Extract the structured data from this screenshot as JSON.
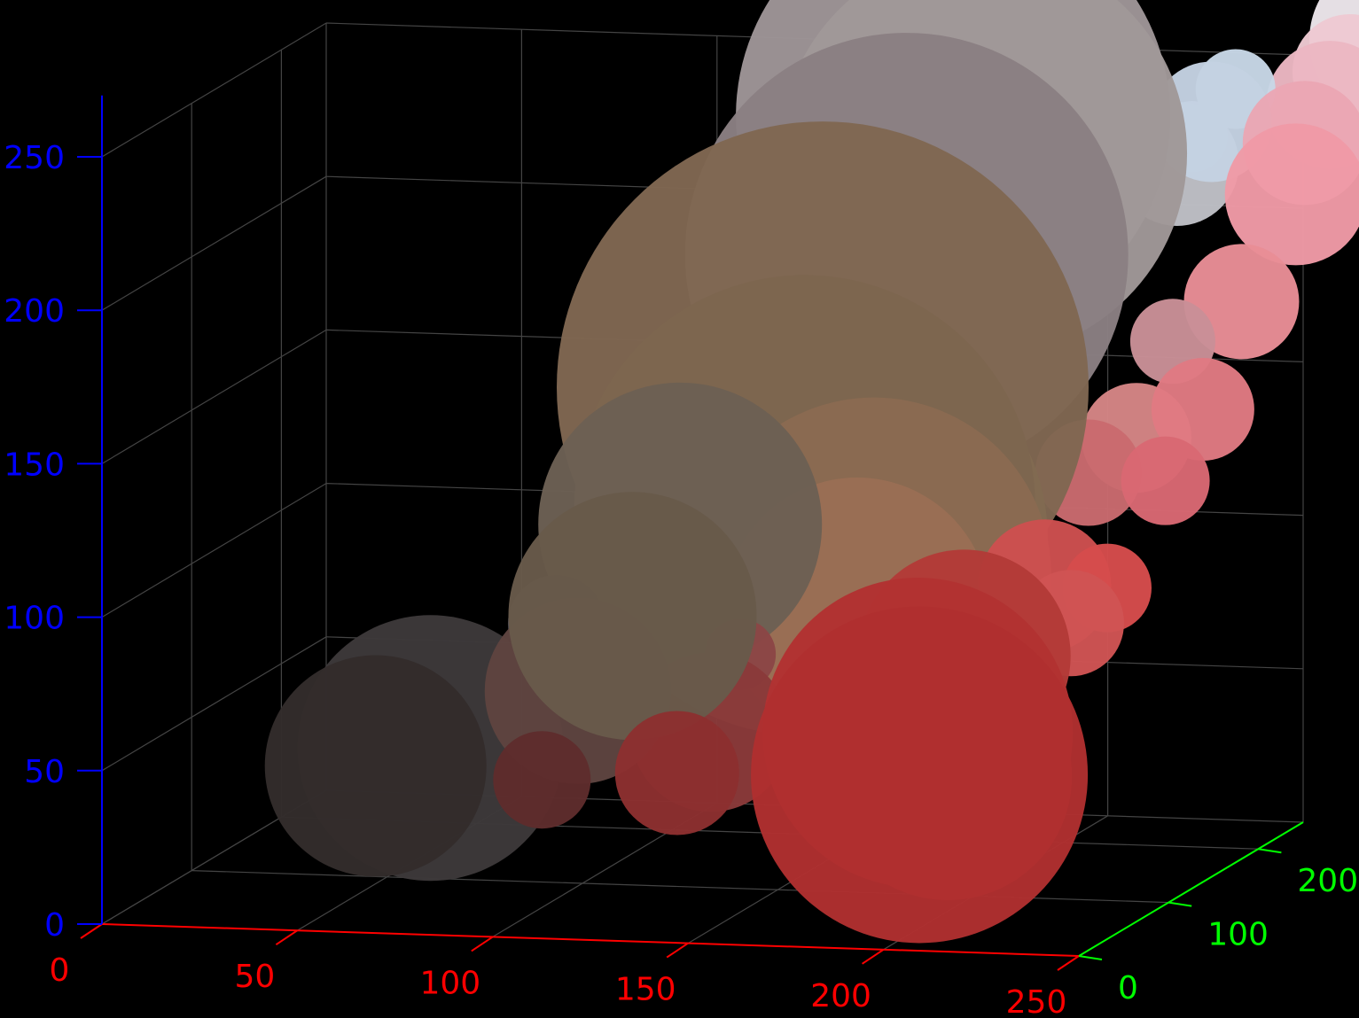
{
  "chart_data": {
    "type": "scatter3d",
    "title": "",
    "background": "#000000",
    "grid": true,
    "grid_color": "#444444",
    "axes": {
      "x": {
        "label": "",
        "range": [
          0,
          250
        ],
        "ticks": [
          0,
          50,
          100,
          150,
          200,
          250
        ],
        "color": "#ff0000"
      },
      "y": {
        "label": "",
        "range": [
          0,
          250
        ],
        "ticks": [
          0,
          100,
          200
        ],
        "color": "#00ff00"
      },
      "z": {
        "label": "",
        "range": [
          0,
          250
        ],
        "ticks": [
          0,
          50,
          100,
          150,
          200,
          250
        ],
        "color": "#0000ff"
      }
    },
    "points": [
      {
        "x": 68,
        "y": 70,
        "z": 48,
        "size": 150,
        "color": "#3d393a"
      },
      {
        "x": 62,
        "y": 35,
        "z": 48,
        "size": 125,
        "color": "#332c2b"
      },
      {
        "x": 98,
        "y": 80,
        "z": 88,
        "size": 55,
        "color": "#4d4a53"
      },
      {
        "x": 104,
        "y": 100,
        "z": 104,
        "size": 58,
        "color": "#55505a"
      },
      {
        "x": 108,
        "y": 60,
        "z": 70,
        "size": 105,
        "color": "#5e4440"
      },
      {
        "x": 108,
        "y": 20,
        "z": 48,
        "size": 55,
        "color": "#5e2c2c"
      },
      {
        "x": 150,
        "y": 150,
        "z": 155,
        "size": 300,
        "color": "#806752"
      },
      {
        "x": 125,
        "y": 100,
        "z": 118,
        "size": 160,
        "color": "#6c6054"
      },
      {
        "x": 122,
        "y": 60,
        "z": 95,
        "size": 140,
        "color": "#685a4a"
      },
      {
        "x": 160,
        "y": 200,
        "z": 190,
        "size": 250,
        "color": "#8a7f82"
      },
      {
        "x": 165,
        "y": 230,
        "z": 230,
        "size": 245,
        "color": "#9e9597"
      },
      {
        "x": 175,
        "y": 220,
        "z": 220,
        "size": 230,
        "color": "#a09898"
      },
      {
        "x": 150,
        "y": 130,
        "z": 120,
        "size": 260,
        "color": "#7d6650"
      },
      {
        "x": 160,
        "y": 130,
        "z": 110,
        "size": 230,
        "color": "#816a52"
      },
      {
        "x": 170,
        "y": 120,
        "z": 100,
        "size": 200,
        "color": "#8a6a52"
      },
      {
        "x": 168,
        "y": 110,
        "z": 90,
        "size": 150,
        "color": "#9a6e55"
      },
      {
        "x": 145,
        "y": 80,
        "z": 80,
        "size": 40,
        "color": "#8b4646"
      },
      {
        "x": 142,
        "y": 60,
        "z": 58,
        "size": 90,
        "color": "#8a3a3a"
      },
      {
        "x": 138,
        "y": 40,
        "z": 48,
        "size": 70,
        "color": "#8c3030"
      },
      {
        "x": 180,
        "y": 140,
        "z": 125,
        "size": 42,
        "color": "#a56e72"
      },
      {
        "x": 200,
        "y": 90,
        "z": 80,
        "size": 120,
        "color": "#b33b38"
      },
      {
        "x": 195,
        "y": 60,
        "z": 60,
        "size": 175,
        "color": "#b23232"
      },
      {
        "x": 200,
        "y": 40,
        "z": 50,
        "size": 190,
        "color": "#b0302f"
      },
      {
        "x": 205,
        "y": 50,
        "z": 48,
        "size": 140,
        "color": "#b32a2c"
      },
      {
        "x": 216,
        "y": 110,
        "z": 100,
        "size": 75,
        "color": "#cd5050"
      },
      {
        "x": 218,
        "y": 150,
        "z": 130,
        "size": 60,
        "color": "#c96a6e"
      },
      {
        "x": 225,
        "y": 100,
        "z": 90,
        "size": 60,
        "color": "#d05454"
      },
      {
        "x": 228,
        "y": 160,
        "z": 140,
        "size": 62,
        "color": "#d58585"
      },
      {
        "x": 232,
        "y": 110,
        "z": 100,
        "size": 50,
        "color": "#d64c4c"
      },
      {
        "x": 235,
        "y": 170,
        "z": 170,
        "size": 48,
        "color": "#c98f97"
      },
      {
        "x": 240,
        "y": 140,
        "z": 130,
        "size": 50,
        "color": "#d96873"
      },
      {
        "x": 245,
        "y": 160,
        "z": 150,
        "size": 58,
        "color": "#e07a82"
      },
      {
        "x": 248,
        "y": 190,
        "z": 180,
        "size": 65,
        "color": "#e88d96"
      },
      {
        "x": 255,
        "y": 220,
        "z": 210,
        "size": 80,
        "color": "#ef9aa6"
      },
      {
        "x": 255,
        "y": 230,
        "z": 225,
        "size": 70,
        "color": "#eaa6b4"
      },
      {
        "x": 258,
        "y": 245,
        "z": 235,
        "size": 72,
        "color": "#ebb7c2"
      },
      {
        "x": 262,
        "y": 250,
        "z": 245,
        "size": 65,
        "color": "#edc9d2"
      },
      {
        "x": 272,
        "y": 255,
        "z": 255,
        "size": 95,
        "color": "#ece6eb"
      },
      {
        "x": 235,
        "y": 240,
        "z": 240,
        "size": 45,
        "color": "#c7d7e6"
      },
      {
        "x": 230,
        "y": 235,
        "z": 230,
        "size": 68,
        "color": "#c4d2e2"
      },
      {
        "x": 225,
        "y": 235,
        "z": 225,
        "size": 40,
        "color": "#b8cce0"
      },
      {
        "x": 220,
        "y": 240,
        "z": 215,
        "size": 70,
        "color": "#bfc0c6"
      }
    ]
  }
}
